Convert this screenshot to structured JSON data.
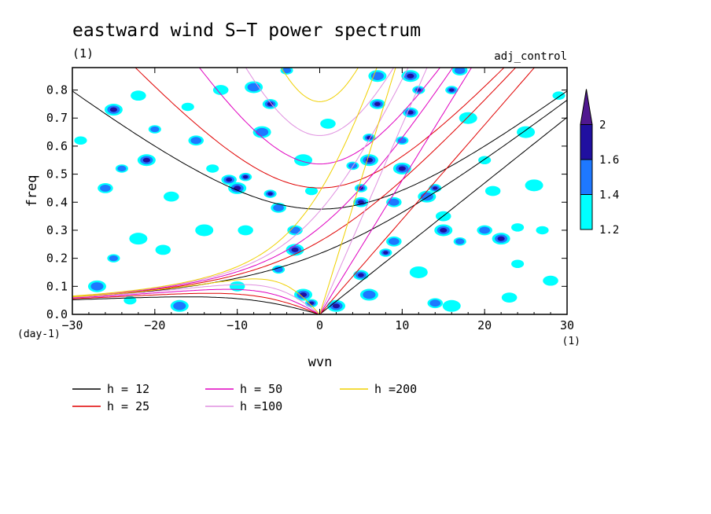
{
  "chart_data": {
    "type": "heatmap",
    "title": "eastward wind S−T power spectrum",
    "subtitle_left": "(1)",
    "subtitle_right": "adj_control",
    "xlabel": "wvn",
    "ylabel": "freq",
    "x_unit": "(1)",
    "y_unit": "(day-1)",
    "xlim": [
      -30,
      30
    ],
    "ylim": [
      0,
      0.88
    ],
    "x_ticks": [
      -30,
      -20,
      -10,
      0,
      10,
      20,
      30
    ],
    "x_tick_labels": [
      "−30",
      "−20",
      "−10",
      "0",
      "10",
      "20",
      "30"
    ],
    "y_ticks": [
      0,
      0.1,
      0.2,
      0.3,
      0.4,
      0.5,
      0.6,
      0.7,
      0.8
    ],
    "y_tick_labels": [
      "0.0",
      "0.1",
      "0.2",
      "0.3",
      "0.4",
      "0.5",
      "0.6",
      "0.7",
      "0.8"
    ],
    "colorbar": {
      "levels": [
        1.2,
        1.4,
        1.6,
        2
      ],
      "labels": [
        "1.2",
        "1.4",
        "1.6",
        "2"
      ],
      "colors": [
        "#00ffff",
        "#1e78ff",
        "#2010a0",
        "#501890"
      ]
    },
    "shading_blobs": [
      [
        -29,
        0.62,
        1.3
      ],
      [
        -26,
        0.45,
        1.5
      ],
      [
        -25,
        0.73,
        1.7
      ],
      [
        -24,
        0.52,
        1.4
      ],
      [
        -22,
        0.78,
        1.3
      ],
      [
        -21,
        0.55,
        1.8
      ],
      [
        -20,
        0.66,
        1.4
      ],
      [
        -18,
        0.42,
        1.3
      ],
      [
        -22,
        0.27,
        1.3
      ],
      [
        -25,
        0.2,
        1.5
      ],
      [
        -19,
        0.23,
        1.3
      ],
      [
        -17,
        0.03,
        1.4
      ],
      [
        -16,
        0.74,
        1.3
      ],
      [
        -15,
        0.62,
        1.4
      ],
      [
        -14,
        0.3,
        1.3
      ],
      [
        -13,
        0.52,
        1.3
      ],
      [
        -11,
        0.48,
        1.7
      ],
      [
        -10,
        0.45,
        1.9
      ],
      [
        -9,
        0.49,
        1.6
      ],
      [
        -12,
        0.8,
        1.3
      ],
      [
        -8,
        0.81,
        1.5
      ],
      [
        -6,
        0.43,
        1.8
      ],
      [
        -5,
        0.38,
        1.5
      ],
      [
        -7,
        0.65,
        1.4
      ],
      [
        -4,
        0.87,
        1.5
      ],
      [
        -6,
        0.75,
        1.8
      ],
      [
        -3,
        0.23,
        1.7
      ],
      [
        -5,
        0.16,
        1.5
      ],
      [
        -3,
        0.3,
        1.4
      ],
      [
        -2,
        0.07,
        1.8
      ],
      [
        -1,
        0.04,
        2.0
      ],
      [
        -9,
        0.3,
        1.3
      ],
      [
        -27,
        0.1,
        1.4
      ],
      [
        -23,
        0.05,
        1.3
      ],
      [
        -10,
        0.1,
        1.3
      ],
      [
        -2,
        0.55,
        1.3
      ],
      [
        -1,
        0.44,
        1.3
      ],
      [
        1,
        0.68,
        1.3
      ],
      [
        2,
        0.03,
        1.9
      ],
      [
        5,
        0.45,
        1.9
      ],
      [
        5,
        0.4,
        1.7
      ],
      [
        6,
        0.55,
        1.8
      ],
      [
        6,
        0.63,
        1.6
      ],
      [
        7,
        0.75,
        1.7
      ],
      [
        7,
        0.85,
        1.5
      ],
      [
        4,
        0.53,
        1.4
      ],
      [
        5,
        0.14,
        1.7
      ],
      [
        6,
        0.07,
        1.4
      ],
      [
        8,
        0.22,
        1.7
      ],
      [
        9,
        0.26,
        1.5
      ],
      [
        10,
        0.52,
        1.6
      ],
      [
        10,
        0.62,
        1.5
      ],
      [
        11,
        0.72,
        1.8
      ],
      [
        11,
        0.85,
        2.0
      ],
      [
        12,
        0.8,
        1.9
      ],
      [
        9,
        0.4,
        1.4
      ],
      [
        13,
        0.42,
        1.5
      ],
      [
        14,
        0.45,
        1.6
      ],
      [
        15,
        0.35,
        1.3
      ],
      [
        15,
        0.3,
        1.7
      ],
      [
        16,
        0.8,
        1.6
      ],
      [
        17,
        0.87,
        1.5
      ],
      [
        18,
        0.7,
        1.3
      ],
      [
        20,
        0.55,
        1.3
      ],
      [
        14,
        0.04,
        1.5
      ],
      [
        16,
        0.03,
        1.3
      ],
      [
        17,
        0.26,
        1.4
      ],
      [
        20,
        0.3,
        1.5
      ],
      [
        22,
        0.27,
        1.6
      ],
      [
        24,
        0.31,
        1.3
      ],
      [
        23,
        0.06,
        1.3
      ],
      [
        25,
        0.65,
        1.3
      ],
      [
        27,
        0.3,
        1.3
      ],
      [
        28,
        0.12,
        1.3
      ],
      [
        26,
        0.46,
        1.3
      ],
      [
        29,
        0.78,
        1.3
      ],
      [
        21,
        0.44,
        1.3
      ],
      [
        12,
        0.15,
        1.3
      ],
      [
        24,
        0.18,
        1.3
      ]
    ],
    "legend": [
      {
        "label": "h = 12",
        "h": 12,
        "color": "#000000"
      },
      {
        "label": "h = 25",
        "h": 25,
        "color": "#e00000"
      },
      {
        "label": "h = 50",
        "h": 50,
        "color": "#e000c0"
      },
      {
        "label": "h =100",
        "h": 100,
        "color": "#e090e0"
      },
      {
        "label": "h =200",
        "h": 200,
        "color": "#f0d000"
      }
    ]
  }
}
